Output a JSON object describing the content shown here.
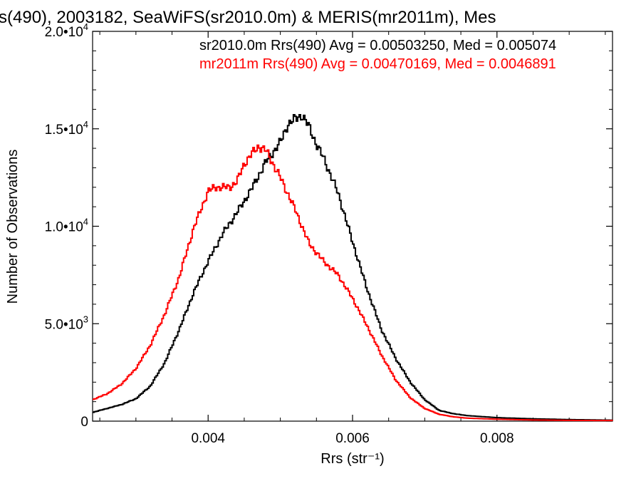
{
  "chart_data": {
    "type": "line",
    "title": "s(490), 2003182, SeaWiFS(sr2010.0m) & MERIS(mr2011m), Mes",
    "xlabel": "Rrs (str⁻¹)",
    "ylabel": "Number of Observations",
    "xlim": [
      0.0024,
      0.0096
    ],
    "ylim": [
      0,
      20000
    ],
    "x_ticks": [
      {
        "value": 0.004,
        "label": "0.004"
      },
      {
        "value": 0.006,
        "label": "0.006"
      },
      {
        "value": 0.008,
        "label": "0.008"
      }
    ],
    "y_ticks": [
      {
        "value": 0,
        "label": "0"
      },
      {
        "value": 5000,
        "label": "5.0•10",
        "exp": "3"
      },
      {
        "value": 10000,
        "label": "1.0•10",
        "exp": "4"
      },
      {
        "value": 15000,
        "label": "1.5•10",
        "exp": "4"
      },
      {
        "value": 20000,
        "label": "2.0•10",
        "exp": "4"
      }
    ],
    "grid": false,
    "legend_placement": "top-right",
    "series": [
      {
        "name": "sr2010.0m",
        "legend_text": "sr2010.0m Rrs(490) Avg = 0.00503250, Med = 0.005074",
        "color": "#000000",
        "style": "step",
        "x": [
          0.0024,
          0.0026,
          0.0028,
          0.003,
          0.0032,
          0.0034,
          0.0036,
          0.0038,
          0.004,
          0.0042,
          0.0044,
          0.0046,
          0.0048,
          0.005,
          0.0051,
          0.0052,
          0.0053,
          0.0054,
          0.0055,
          0.0056,
          0.0058,
          0.006,
          0.0062,
          0.0064,
          0.0066,
          0.0068,
          0.007,
          0.0072,
          0.0074,
          0.0076,
          0.008,
          0.0085,
          0.009,
          0.0096
        ],
        "y": [
          450,
          650,
          850,
          1150,
          1800,
          3000,
          4700,
          6600,
          8200,
          9600,
          10700,
          11900,
          13300,
          14300,
          15200,
          15500,
          15700,
          15100,
          14200,
          13500,
          11700,
          9200,
          6800,
          4700,
          3200,
          2000,
          1100,
          550,
          380,
          280,
          180,
          120,
          80,
          50
        ]
      },
      {
        "name": "mr2011m",
        "legend_text": "mr2011m Rrs(490) Avg = 0.00470169, Med = 0.0046891",
        "color": "#ff0000",
        "style": "step",
        "x": [
          0.0024,
          0.0026,
          0.0028,
          0.003,
          0.0032,
          0.0034,
          0.0036,
          0.0038,
          0.004,
          0.0041,
          0.0042,
          0.0043,
          0.0044,
          0.0045,
          0.0046,
          0.0047,
          0.0048,
          0.0049,
          0.005,
          0.0052,
          0.0054,
          0.0056,
          0.0058,
          0.006,
          0.0062,
          0.0064,
          0.0066,
          0.0068,
          0.007,
          0.0072,
          0.0074,
          0.0076,
          0.008,
          0.0085,
          0.009,
          0.0096
        ],
        "y": [
          1100,
          1400,
          1900,
          2700,
          3900,
          5500,
          7400,
          9900,
          11800,
          12000,
          12000,
          12000,
          12300,
          13200,
          13700,
          14100,
          13900,
          13200,
          12500,
          10900,
          9100,
          8200,
          7500,
          6300,
          4900,
          3400,
          2100,
          1200,
          650,
          350,
          220,
          150,
          100,
          60,
          40,
          30
        ]
      }
    ]
  }
}
